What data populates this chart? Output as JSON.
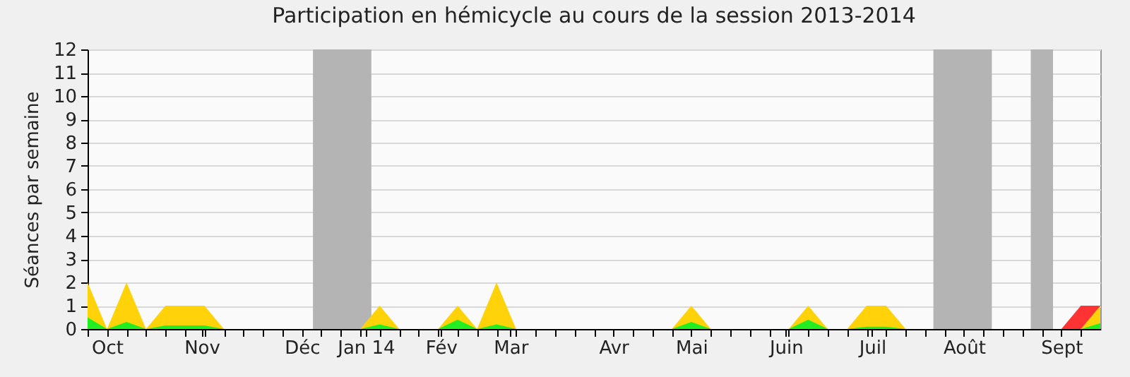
{
  "chart_data": {
    "type": "area",
    "title": "Participation en hémicycle au cours de la session 2013-2014",
    "ylabel": "Séances par semaine",
    "x": [
      "2013-09-30",
      "2013-10-07",
      "2013-10-14",
      "2013-10-21",
      "2013-10-28",
      "2013-11-04",
      "2013-11-11",
      "2013-11-18",
      "2013-11-25",
      "2013-12-02",
      "2013-12-09",
      "2013-12-16",
      "2013-12-23",
      "2013-12-30",
      "2014-01-06",
      "2014-01-13",
      "2014-01-20",
      "2014-01-27",
      "2014-02-03",
      "2014-02-10",
      "2014-02-17",
      "2014-02-24",
      "2014-03-03",
      "2014-03-10",
      "2014-03-17",
      "2014-03-24",
      "2014-03-31",
      "2014-04-07",
      "2014-04-14",
      "2014-04-21",
      "2014-04-28",
      "2014-05-05",
      "2014-05-12",
      "2014-05-19",
      "2014-05-26",
      "2014-06-02",
      "2014-06-09",
      "2014-06-16",
      "2014-06-23",
      "2014-06-30",
      "2014-07-07",
      "2014-07-14",
      "2014-07-21",
      "2014-07-28",
      "2014-08-04",
      "2014-08-11",
      "2014-08-18",
      "2014-08-25",
      "2014-09-01",
      "2014-09-08",
      "2014-09-15",
      "2014-09-22",
      "2014-09-29"
    ],
    "series": [
      {
        "color": "#ff3333",
        "x": [
          "2014-09-15",
          "2014-09-22",
          "2014-09-29"
        ],
        "values": [
          0,
          1,
          1
        ]
      },
      {
        "color": "#ffd20a",
        "values": [
          2,
          0,
          2,
          0,
          1,
          1,
          1,
          0,
          0,
          0,
          0,
          0,
          0,
          0,
          0,
          1,
          0,
          0,
          0,
          1,
          0,
          2,
          0,
          0,
          0,
          0,
          0,
          0,
          0,
          0,
          0,
          1,
          0,
          0,
          0,
          0,
          0,
          1,
          0,
          0,
          1,
          1,
          0,
          0,
          0,
          0,
          0,
          0,
          0,
          0,
          0,
          0,
          1
        ]
      },
      {
        "color": "#22ee22",
        "values": [
          0.5,
          0,
          0.3,
          0,
          0.15,
          0.15,
          0.15,
          0,
          0,
          0,
          0,
          0,
          0,
          0,
          0,
          0.2,
          0,
          0,
          0,
          0.4,
          0,
          0.2,
          0,
          0,
          0,
          0,
          0,
          0,
          0,
          0,
          0,
          0.3,
          0,
          0,
          0,
          0,
          0,
          0.4,
          0,
          0,
          0.1,
          0.1,
          0,
          0,
          0,
          0,
          0,
          0,
          0,
          0,
          0,
          0,
          0.25
        ]
      }
    ],
    "xlim": [
      "2013-09-30",
      "2014-09-29"
    ],
    "xticks": [
      {
        "value": "2013-09-30",
        "label": null
      },
      {
        "value": "2013-10-07",
        "label": "Oct"
      },
      {
        "value": "2013-10-14",
        "label": null
      },
      {
        "value": "2013-10-21",
        "label": null
      },
      {
        "value": "2013-10-28",
        "label": null
      },
      {
        "value": "2013-11-04",
        "label": null
      },
      {
        "value": "2013-11-11",
        "label": null
      },
      {
        "value": "2013-11-18",
        "label": null
      },
      {
        "value": "2013-11-25",
        "label": null
      },
      {
        "value": "2013-12-02",
        "label": null
      },
      {
        "value": "2013-12-09",
        "label": null
      },
      {
        "value": "2013-12-16",
        "label": "Déc"
      },
      {
        "value": "2013-12-23",
        "label": null
      },
      {
        "value": "2013-12-30",
        "label": null
      },
      {
        "value": "2014-01-06",
        "label": null
      },
      {
        "value": "2014-01-13",
        "label": null
      },
      {
        "value": "2014-01-20",
        "label": null
      },
      {
        "value": "2014-01-27",
        "label": null
      },
      {
        "value": "2014-02-03",
        "label": null
      },
      {
        "value": "2014-02-10",
        "label": null
      },
      {
        "value": "2014-02-17",
        "label": null
      },
      {
        "value": "2014-02-24",
        "label": null
      },
      {
        "value": "2014-03-03",
        "label": null
      },
      {
        "value": "2014-03-10",
        "label": null
      },
      {
        "value": "2014-03-17",
        "label": null
      },
      {
        "value": "2014-03-24",
        "label": null
      },
      {
        "value": "2014-03-31",
        "label": null
      },
      {
        "value": "2014-04-07",
        "label": "Avr"
      },
      {
        "value": "2014-04-14",
        "label": null
      },
      {
        "value": "2014-04-21",
        "label": null
      },
      {
        "value": "2014-04-28",
        "label": null
      },
      {
        "value": "2014-05-05",
        "label": "Mai"
      },
      {
        "value": "2014-05-12",
        "label": null
      },
      {
        "value": "2014-05-19",
        "label": null
      },
      {
        "value": "2014-05-26",
        "label": null
      },
      {
        "value": "2014-06-02",
        "label": null
      },
      {
        "value": "2014-06-09",
        "label": null
      },
      {
        "value": "2014-06-16",
        "label": null
      },
      {
        "value": "2014-06-23",
        "label": null
      },
      {
        "value": "2014-06-30",
        "label": null
      },
      {
        "value": "2014-07-07",
        "label": null
      },
      {
        "value": "2014-07-14",
        "label": null
      },
      {
        "value": "2014-07-21",
        "label": null
      },
      {
        "value": "2014-07-28",
        "label": null
      },
      {
        "value": "2014-08-04",
        "label": null
      },
      {
        "value": "2014-08-11",
        "label": "Août"
      },
      {
        "value": "2014-08-18",
        "label": null
      },
      {
        "value": "2014-08-25",
        "label": null
      },
      {
        "value": "2014-09-01",
        "label": null
      },
      {
        "value": "2014-09-08",
        "label": null
      },
      {
        "value": "2014-09-15",
        "label": "Sept"
      },
      {
        "value": "2014-09-22",
        "label": null
      },
      {
        "value": "2013-11-10",
        "label": "Nov"
      },
      {
        "value": "2014-01-08",
        "label": "Jan 14"
      },
      {
        "value": "2014-02-04",
        "label": "Fév"
      },
      {
        "value": "2014-03-01",
        "label": "Mar"
      },
      {
        "value": "2014-06-08",
        "label": "Juin"
      },
      {
        "value": "2014-07-09",
        "label": "Juil"
      }
    ],
    "ylim": [
      0,
      12
    ],
    "yticks": [
      0,
      1,
      2,
      3,
      4,
      5,
      6,
      7,
      8,
      9,
      10,
      11,
      12
    ],
    "grid": "y",
    "bands": [
      {
        "axis": "x",
        "from": "2013-12-20",
        "to": "2014-01-10",
        "color": "#b4b4b4"
      },
      {
        "axis": "x",
        "from": "2014-07-31",
        "to": "2014-08-21",
        "color": "#b4b4b4"
      },
      {
        "axis": "x",
        "from": "2014-09-04",
        "to": "2014-09-12",
        "color": "#b4b4b4"
      }
    ]
  }
}
